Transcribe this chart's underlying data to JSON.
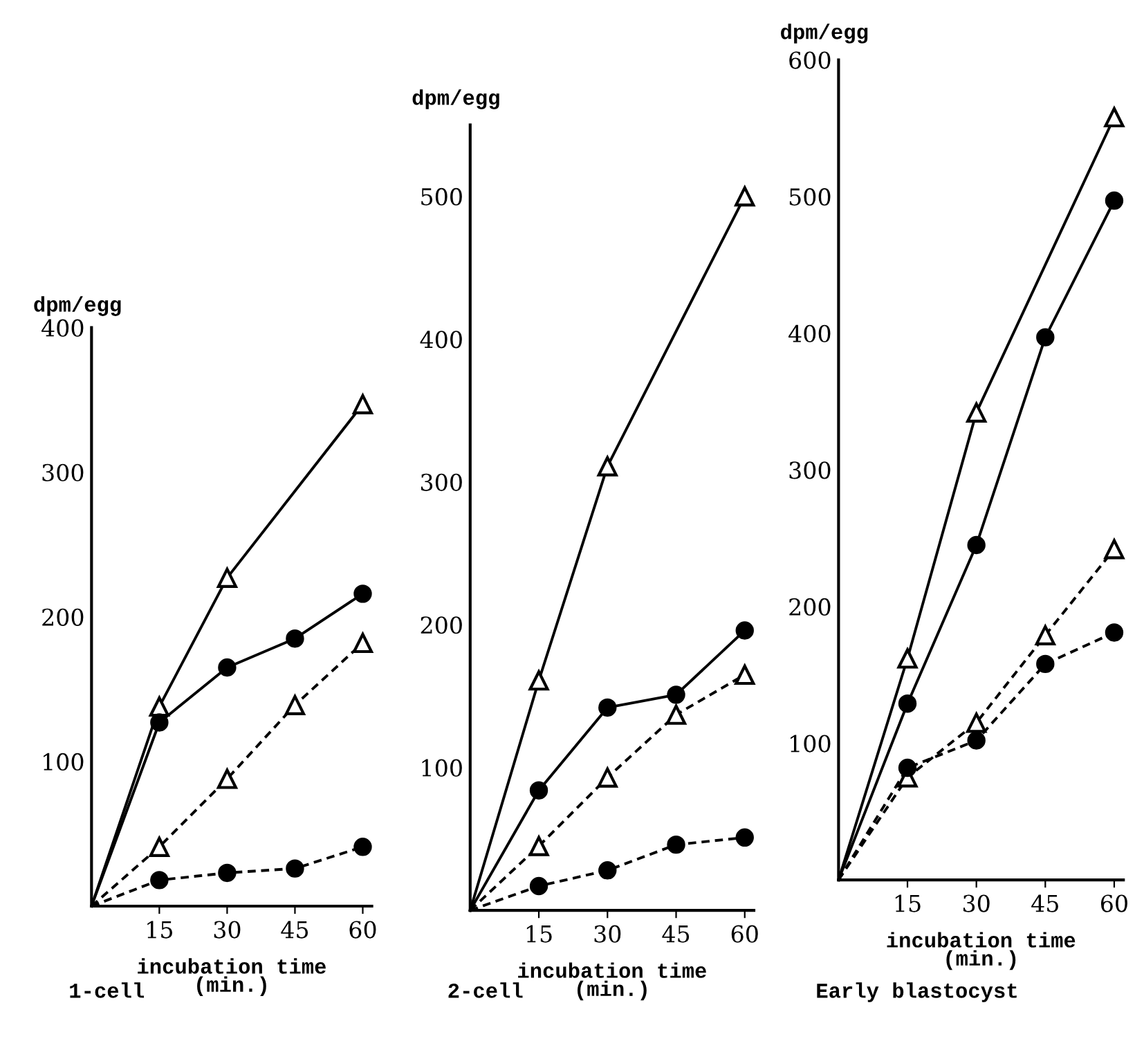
{
  "chart_data": [
    {
      "type": "line",
      "title": "1-cell",
      "xlabel": "incubation time\n(min.)",
      "ylabel": "dpm/egg",
      "x": [
        0,
        15,
        30,
        45,
        60
      ],
      "xlim": [
        0,
        62
      ],
      "xticks": [
        15,
        30,
        45,
        60
      ],
      "ylim": [
        0,
        400
      ],
      "yticks": [
        100,
        200,
        300,
        400
      ],
      "grid": false,
      "legend": false,
      "series": [
        {
          "color": "#000000",
          "marker": "triangle",
          "line_style": "solid",
          "x": [
            0,
            15,
            30,
            60
          ],
          "values": [
            0,
            138,
            227,
            347
          ]
        },
        {
          "color": "#000000",
          "marker": "circle",
          "line_style": "solid",
          "values": [
            0,
            127,
            165,
            185,
            216
          ]
        },
        {
          "color": "#000000",
          "marker": "triangle",
          "line_style": "dashed",
          "values": [
            0,
            41,
            88,
            139,
            182
          ]
        },
        {
          "color": "#000000",
          "marker": "circle",
          "line_style": "dashed",
          "values": [
            0,
            18,
            23,
            26,
            41
          ]
        }
      ]
    },
    {
      "type": "line",
      "title": "2-cell",
      "xlabel": "incubation time\n(min.)",
      "ylabel": "dpm/egg",
      "x": [
        0,
        15,
        30,
        45,
        60
      ],
      "xlim": [
        0,
        62
      ],
      "xticks": [
        15,
        30,
        45,
        60
      ],
      "ylim": [
        0,
        550
      ],
      "yticks": [
        100,
        200,
        300,
        400,
        500
      ],
      "grid": false,
      "legend": false,
      "series": [
        {
          "color": "#000000",
          "marker": "triangle",
          "line_style": "solid",
          "x": [
            0,
            15,
            30,
            60
          ],
          "values": [
            0,
            161,
            311,
            500
          ]
        },
        {
          "color": "#000000",
          "marker": "circle",
          "line_style": "solid",
          "values": [
            0,
            84,
            142,
            151,
            196
          ]
        },
        {
          "color": "#000000",
          "marker": "triangle",
          "line_style": "dashed",
          "values": [
            0,
            45,
            93,
            137,
            165
          ]
        },
        {
          "color": "#000000",
          "marker": "circle",
          "line_style": "dashed",
          "values": [
            0,
            17,
            28,
            46,
            51
          ]
        }
      ]
    },
    {
      "type": "line",
      "title": "Early blastocyst",
      "xlabel": "incubation time\n(min.)",
      "ylabel": "dpm/egg",
      "x": [
        0,
        15,
        30,
        45,
        60
      ],
      "xlim": [
        0,
        62
      ],
      "xticks": [
        15,
        30,
        45,
        60
      ],
      "ylim": [
        0,
        600
      ],
      "yticks": [
        100,
        200,
        300,
        400,
        500,
        600
      ],
      "grid": false,
      "legend": false,
      "series": [
        {
          "color": "#000000",
          "marker": "triangle",
          "line_style": "solid",
          "x": [
            0,
            15,
            30,
            60
          ],
          "values": [
            0,
            162,
            342,
            558
          ]
        },
        {
          "color": "#000000",
          "marker": "circle",
          "line_style": "solid",
          "values": [
            0,
            129,
            245,
            397,
            497
          ]
        },
        {
          "color": "#000000",
          "marker": "triangle",
          "line_style": "dashed",
          "values": [
            0,
            75,
            115,
            179,
            242
          ]
        },
        {
          "color": "#000000",
          "marker": "circle",
          "line_style": "dashed",
          "values": [
            0,
            82,
            102,
            158,
            181
          ]
        }
      ]
    }
  ]
}
